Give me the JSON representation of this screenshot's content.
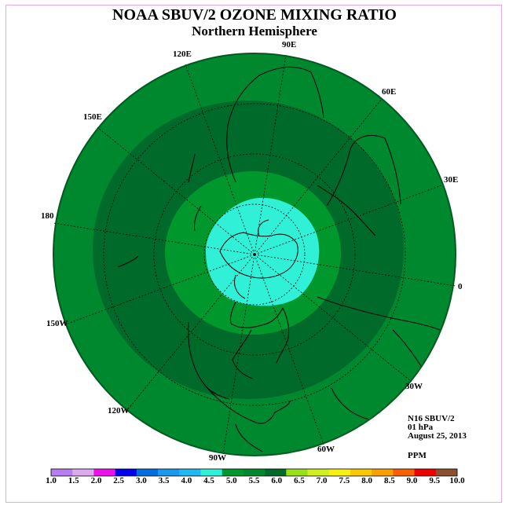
{
  "title": "NOAA SBUV/2 OZONE MIXING RATIO",
  "subtitle": "Northern Hemisphere",
  "longitude_labels": [
    "90E",
    "60E",
    "30E",
    "0",
    "30W",
    "60W",
    "90W",
    "120W",
    "150W",
    "180",
    "150E",
    "120E"
  ],
  "info": {
    "satellite": "N16 SBUV/2",
    "level": "01 hPa",
    "date": "August 25, 2013",
    "units": "PPM"
  },
  "legend": {
    "labels": [
      "1.0",
      "1.5",
      "2.0",
      "2.5",
      "3.0",
      "3.5",
      "4.0",
      "4.5",
      "5.0",
      "5.5",
      "6.0",
      "6.5",
      "7.0",
      "7.5",
      "8.0",
      "8.5",
      "9.0",
      "9.5",
      "10.0"
    ],
    "colors": [
      "#b77ef0",
      "#dcaaee",
      "#ef10ef",
      "#0000ee",
      "#0070e0",
      "#1898ee",
      "#20b8f0",
      "#30f0d8",
      "#00982c",
      "#00882e",
      "#006a2a",
      "#98e01a",
      "#d0f020",
      "#f8f010",
      "#f8c800",
      "#f8a000",
      "#f86000",
      "#ee0000",
      "#8a5030"
    ]
  },
  "map_colors": {
    "outer": "#00882e",
    "band": "#006a2a",
    "inner": "#00982c",
    "polar_cap": "#30f0d8",
    "grid": "#000000"
  }
}
